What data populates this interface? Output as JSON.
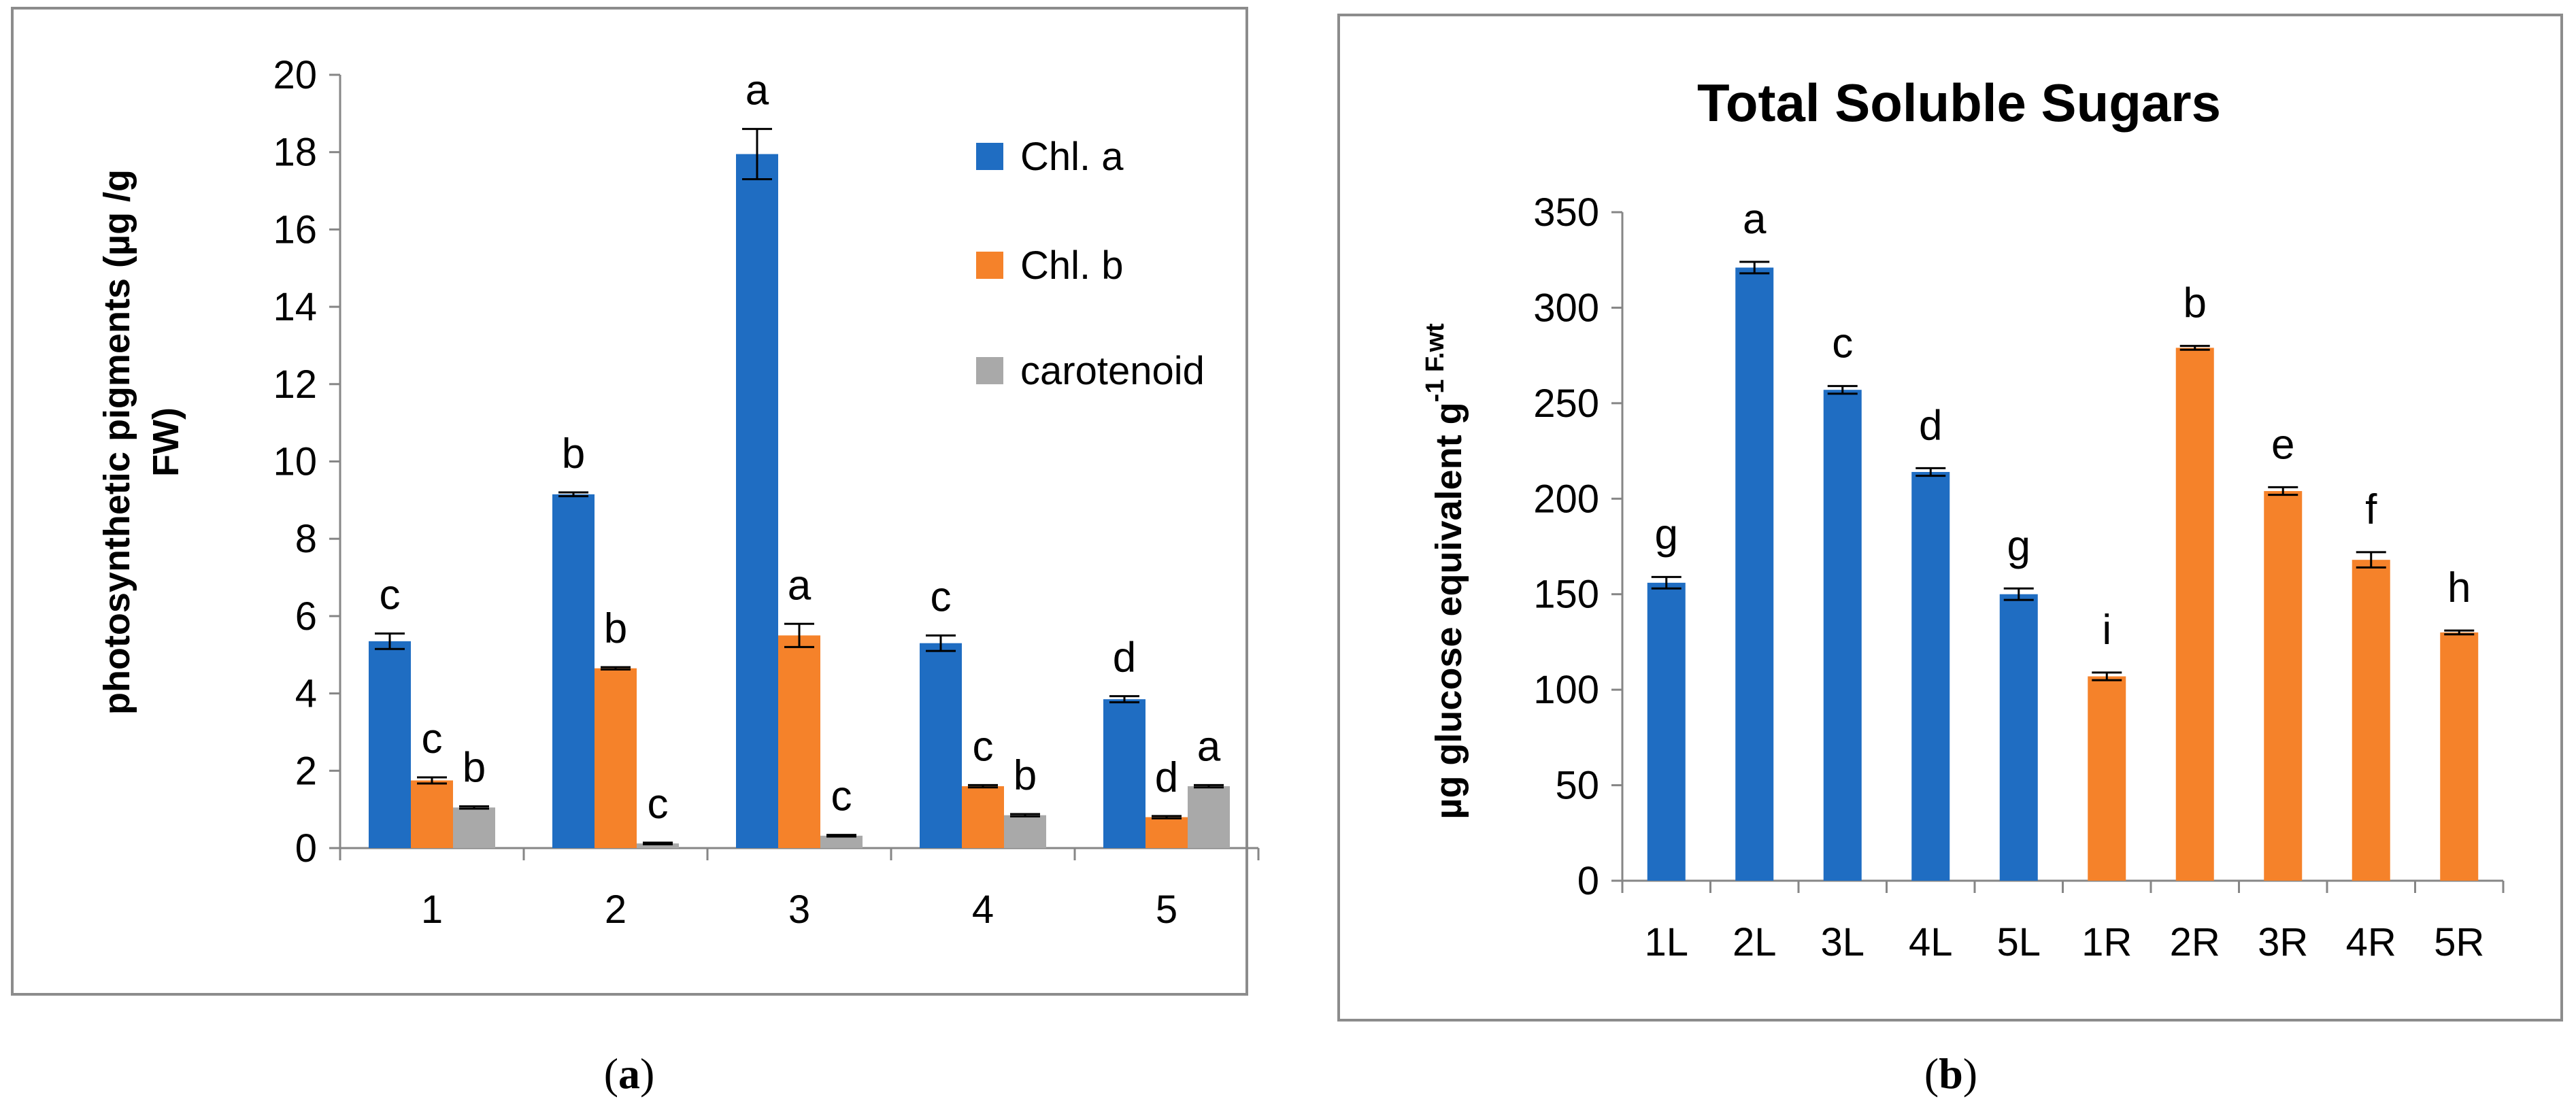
{
  "colors": {
    "chl_a": "#1f6dc2",
    "chl_b": "#f5822a",
    "carotenoid": "#a9a9a9",
    "leaves": "#1f6dc2",
    "roots": "#f5822a"
  },
  "chart_data": [
    {
      "panel": "a",
      "type": "bar",
      "caption_letter": "a",
      "title": "",
      "ylabel_line1": "photosynthetic pigments (µg /g",
      "ylabel_line2": "FW)",
      "xlabel": "",
      "ylim": [
        0,
        20
      ],
      "yticks": [
        0,
        2,
        4,
        6,
        8,
        10,
        12,
        14,
        16,
        18,
        20
      ],
      "categories": [
        "1",
        "2",
        "3",
        "4",
        "5"
      ],
      "legend_position": "top-right",
      "series": [
        {
          "name": "Chl. a",
          "color_key": "chl_a",
          "values": [
            5.35,
            9.15,
            17.95,
            5.3,
            3.85
          ],
          "errors": [
            0.2,
            0.05,
            0.65,
            0.2,
            0.08
          ],
          "letters": [
            "c",
            "b",
            "a",
            "c",
            "d"
          ]
        },
        {
          "name": "Chl. b",
          "color_key": "chl_b",
          "values": [
            1.75,
            4.65,
            5.5,
            1.6,
            0.8
          ],
          "errors": [
            0.08,
            0.03,
            0.3,
            0.03,
            0.03
          ],
          "letters": [
            "c",
            "b",
            "a",
            "c",
            "d"
          ]
        },
        {
          "name": "carotenoid",
          "color_key": "carotenoid",
          "values": [
            1.05,
            0.12,
            0.32,
            0.85,
            1.6
          ],
          "errors": [
            0.03,
            0.02,
            0.02,
            0.03,
            0.03
          ],
          "letters": [
            "b",
            "c",
            "c",
            "b",
            "a"
          ]
        }
      ]
    },
    {
      "panel": "b",
      "type": "bar",
      "caption_letter": "b",
      "title": "Total Soluble Sugars",
      "ylabel_main": "µg glucose equivalent g",
      "ylabel_sup": "-1 F.wt",
      "xlabel": "",
      "ylim": [
        0,
        350
      ],
      "yticks": [
        0,
        50,
        100,
        150,
        200,
        250,
        300,
        350
      ],
      "categories": [
        "1L",
        "2L",
        "3L",
        "4L",
        "5L",
        "1R",
        "2R",
        "3R",
        "4R",
        "5R"
      ],
      "values": [
        156,
        321,
        257,
        214,
        150,
        107,
        279,
        204,
        168,
        130
      ],
      "errors": [
        3,
        3,
        2,
        2,
        3,
        2,
        1,
        2,
        4,
        1
      ],
      "letters": [
        "g",
        "a",
        "c",
        "d",
        "g",
        "i",
        "b",
        "e",
        "f",
        "h"
      ],
      "color_keys": [
        "leaves",
        "leaves",
        "leaves",
        "leaves",
        "leaves",
        "roots",
        "roots",
        "roots",
        "roots",
        "roots"
      ]
    }
  ]
}
